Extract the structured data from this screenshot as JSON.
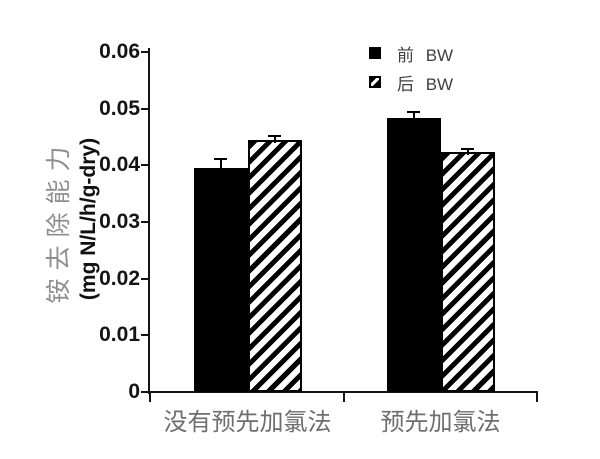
{
  "chart_data": {
    "type": "bar",
    "title": "",
    "categories": [
      "没有预先加氯法",
      "预先加氯法"
    ],
    "series": [
      {
        "name": "前 BW",
        "swatch": "solid-black",
        "values": [
          0.0396,
          0.0483
        ],
        "errors_plus": [
          0.0016,
          0.0012
        ]
      },
      {
        "name": "后 BW",
        "swatch": "diagonal-hatch",
        "values": [
          0.0444,
          0.0424
        ],
        "errors_plus": [
          0.0008,
          0.0004
        ]
      }
    ],
    "ylabel_line1": "铵去除能力",
    "ylabel_line2": "(mg N/L/h/g-dry)",
    "xlabel": "",
    "ylim": [
      0,
      0.06
    ],
    "ytick_step": 0.01,
    "ytick_labels": [
      "0",
      "0.01",
      "0.02",
      "0.03",
      "0.04",
      "0.05",
      "0.06"
    ],
    "legend": {
      "position": "top-right-inside",
      "entries": [
        "前 BW",
        "后 BW"
      ]
    },
    "grid": false,
    "error_bars": true
  },
  "colors": {
    "bar_fill": "#000000",
    "hatch_foreground": "#000000",
    "hatch_background": "#ffffff",
    "axis": "#141414",
    "tick_label": "#141414",
    "category_label": "#6e6e6e",
    "ylabel_chinese": "#8f8f8f",
    "ylabel_unit": "#111111",
    "legend_text": "#404040",
    "background": "#ffffff"
  }
}
